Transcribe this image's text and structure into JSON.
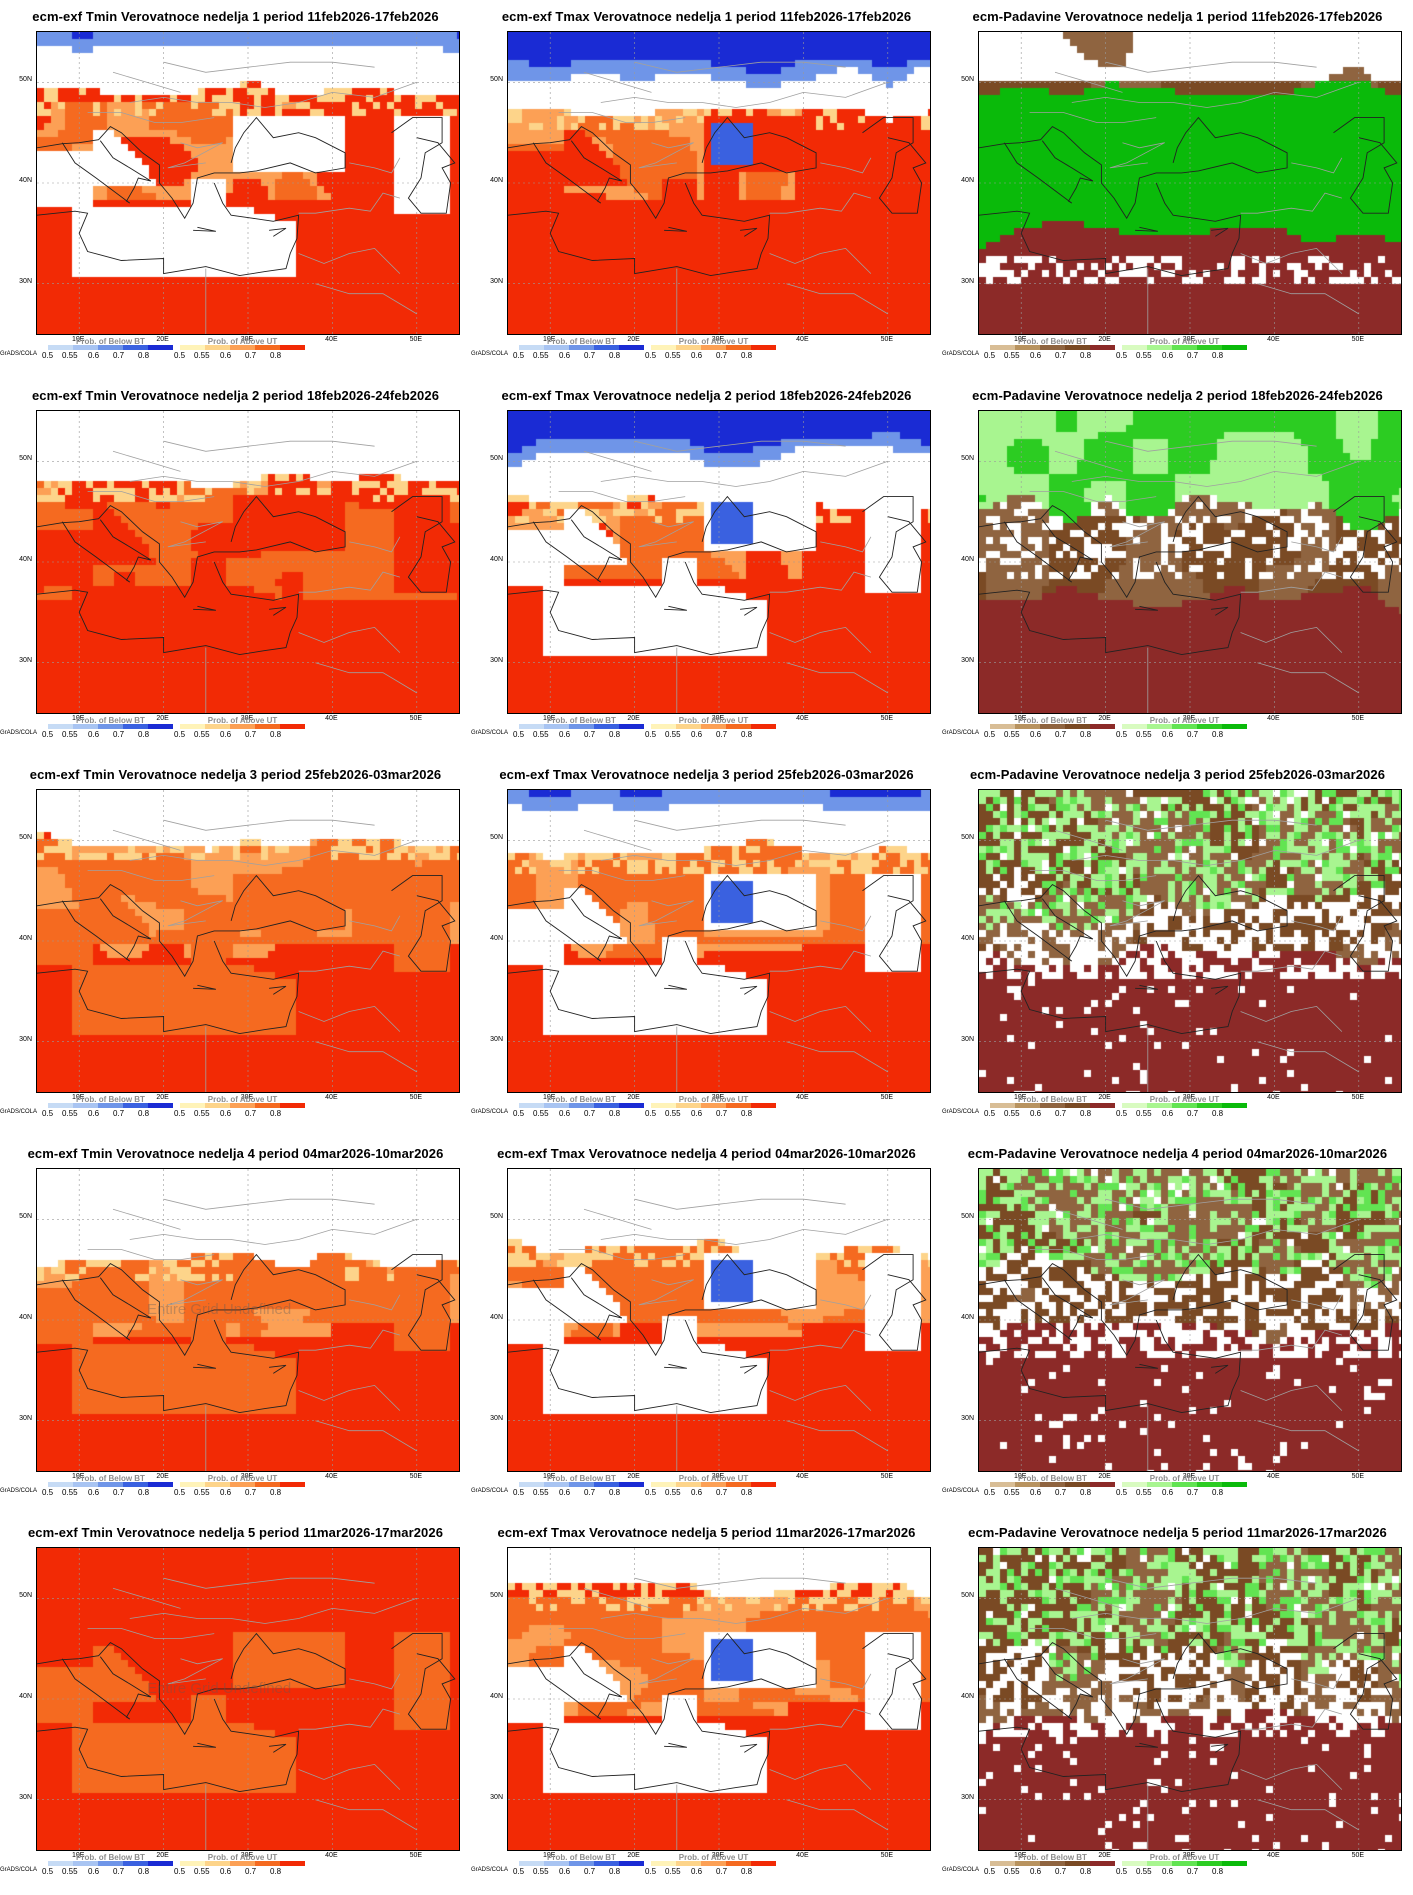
{
  "grads_label": "GrADS/COLA",
  "lat_labels": [
    "50N",
    "40N",
    "30N"
  ],
  "lon_labels": [
    "10E",
    "20E",
    "30E",
    "40E",
    "50E"
  ],
  "legend_ticks": [
    "0.5",
    "0.55",
    "0.6",
    "0.7",
    "0.8"
  ],
  "legends": {
    "below": "Prob. of Below BT",
    "above": "Prob. of Above UT"
  },
  "overlay_text": "Entire Grid Undefined",
  "colors": {
    "cold_scale": [
      "#c6dbf5",
      "#a8c4f2",
      "#6f95e8",
      "#3a61e0",
      "#1a2bd4"
    ],
    "warm_scale": [
      "#fff3b8",
      "#fdd48a",
      "#fca055",
      "#f56a20",
      "#f22a05"
    ],
    "dry_scale": [
      "#d8bd95",
      "#b8935f",
      "#8f6440",
      "#7a4a24",
      "#8c2a28"
    ],
    "wet_scale": [
      "#d8fbc0",
      "#a8f590",
      "#62e452",
      "#2ccc22",
      "#0aba0a"
    ]
  },
  "panels": [
    {
      "title": "ecm-exf Tmin Verovatnoce nedelja 1 period 11feb2026-17feb2026",
      "kind": "tmin",
      "week": 1
    },
    {
      "title": "ecm-exf Tmax Verovatnoce nedelja 1 period 11feb2026-17feb2026",
      "kind": "tmax",
      "week": 1
    },
    {
      "title": "ecm-Padavine Verovatnoce nedelja 1 period 11feb2026-17feb2026",
      "kind": "prec",
      "week": 1
    },
    {
      "title": "ecm-exf Tmin Verovatnoce nedelja 2 period 18feb2026-24feb2026",
      "kind": "tmin",
      "week": 2
    },
    {
      "title": "ecm-exf Tmax Verovatnoce nedelja 2 period 18feb2026-24feb2026",
      "kind": "tmax",
      "week": 2
    },
    {
      "title": "ecm-Padavine Verovatnoce nedelja 2 period 18feb2026-24feb2026",
      "kind": "prec",
      "week": 2
    },
    {
      "title": "ecm-exf Tmin Verovatnoce nedelja 3 period 25feb2026-03mar2026",
      "kind": "tmin",
      "week": 3
    },
    {
      "title": "ecm-exf Tmax Verovatnoce nedelja 3 period 25feb2026-03mar2026",
      "kind": "tmax",
      "week": 3
    },
    {
      "title": "ecm-Padavine Verovatnoce nedelja 3 period 25feb2026-03mar2026",
      "kind": "prec",
      "week": 3
    },
    {
      "title": "ecm-exf Tmin Verovatnoce nedelja 4 period 04mar2026-10mar2026",
      "kind": "tmin",
      "week": 4,
      "overlay": true
    },
    {
      "title": "ecm-exf Tmax Verovatnoce nedelja 4 period 04mar2026-10mar2026",
      "kind": "tmax",
      "week": 4
    },
    {
      "title": "ecm-Padavine Verovatnoce nedelja 4 period 04mar2026-10mar2026",
      "kind": "prec",
      "week": 4
    },
    {
      "title": "ecm-exf Tmin Verovatnoce nedelja 5 period 11mar2026-17mar2026",
      "kind": "tmin",
      "week": 5,
      "overlay": true
    },
    {
      "title": "ecm-exf Tmax Verovatnoce nedelja 5 period 11mar2026-17mar2026",
      "kind": "tmax",
      "week": 5
    },
    {
      "title": "ecm-Padavine Verovatnoce nedelja 5 period 11mar2026-17mar2026",
      "kind": "prec",
      "week": 5
    }
  ]
}
